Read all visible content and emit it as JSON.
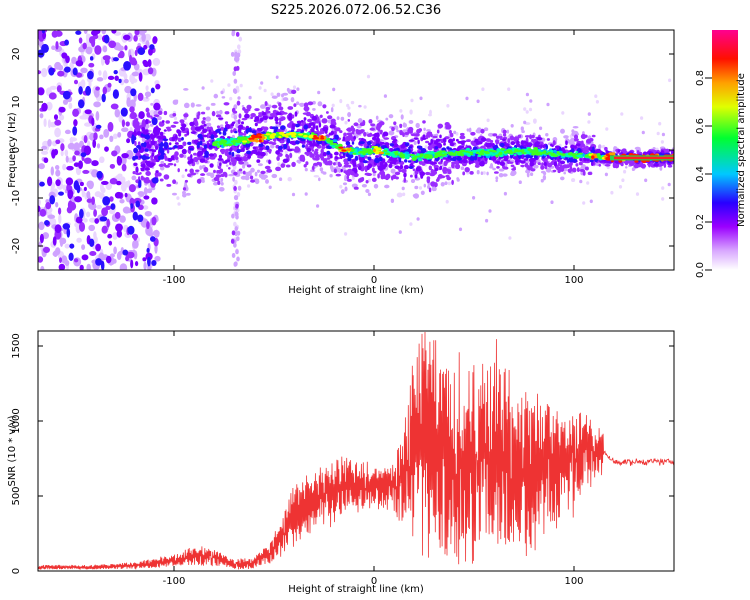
{
  "title": "S225.2026.072.06.52.C36",
  "chart_data": [
    {
      "type": "heatmap",
      "xlabel": "Height of straight line (km)",
      "ylabel": "Frequency (Hz)",
      "xlim": [
        -168,
        150
      ],
      "ylim": [
        -25,
        25
      ],
      "xticks": [
        {
          "v": -100,
          "label": "-100"
        },
        {
          "v": 0,
          "label": "0"
        },
        {
          "v": 100,
          "label": "100"
        }
      ],
      "yticks": [
        {
          "v": 20,
          "label": "20"
        },
        {
          "v": 10,
          "label": "10"
        },
        {
          "v": 0,
          "label": "0"
        },
        {
          "v": -10,
          "label": "-10"
        },
        {
          "v": -20,
          "label": "-20"
        }
      ],
      "ridge": {
        "description": "dominant frequency track (Hz) vs height (km)",
        "x": [
          -110,
          -90,
          -75,
          -65,
          -55,
          -45,
          -35,
          -25,
          -15,
          -5,
          0,
          10,
          20,
          30,
          45,
          60,
          75,
          90,
          100,
          110,
          120,
          130,
          140,
          150
        ],
        "y": [
          0.5,
          1.0,
          1.5,
          2.0,
          2.8,
          3.2,
          3.0,
          2.5,
          0.0,
          -0.5,
          0.0,
          -0.8,
          -1.5,
          -1.0,
          -0.5,
          -0.5,
          -0.3,
          -0.8,
          -1.0,
          -1.3,
          -1.5,
          -1.6,
          -1.7,
          -1.7
        ]
      },
      "colorbar": {
        "label": "Normalized spectral amplitude",
        "range": [
          0.0,
          1.0
        ],
        "ticks": [
          {
            "v": 0.0,
            "label": "0.0"
          },
          {
            "v": 0.2,
            "label": "0.2"
          },
          {
            "v": 0.4,
            "label": "0.4"
          },
          {
            "v": 0.6,
            "label": "0.6"
          },
          {
            "v": 0.8,
            "label": "0.8"
          }
        ],
        "colors": [
          "#ffffff",
          "#a000ff",
          "#0000ff",
          "#00c8ff",
          "#00ff00",
          "#ffff00",
          "#ff8000",
          "#ff0000",
          "#ff0080"
        ]
      }
    },
    {
      "type": "line",
      "xlabel": "Height of straight line (km)",
      "ylabel": "SNR (10 * v/v)",
      "xlim": [
        -168,
        150
      ],
      "ylim": [
        0,
        1600
      ],
      "xticks": [
        {
          "v": -100,
          "label": "-100"
        },
        {
          "v": 0,
          "label": "0"
        },
        {
          "v": 100,
          "label": "100"
        }
      ],
      "yticks": [
        {
          "v": 0,
          "label": "0"
        },
        {
          "v": 500,
          "label": "500"
        },
        {
          "v": 1000,
          "label": "1000"
        },
        {
          "v": 1500,
          "label": "1500"
        }
      ],
      "color": "#ee3333",
      "envelope": {
        "description": "approximate upper / lower envelope of the noisy SNR trace (data units)",
        "x": [
          -168,
          -140,
          -120,
          -100,
          -90,
          -80,
          -70,
          -60,
          -50,
          -40,
          -30,
          -20,
          -10,
          0,
          10,
          15,
          20,
          30,
          40,
          50,
          60,
          70,
          80,
          90,
          100,
          110,
          115,
          120,
          150
        ],
        "hi": [
          40,
          40,
          60,
          110,
          160,
          150,
          80,
          90,
          230,
          560,
          660,
          720,
          760,
          680,
          720,
          1000,
          1500,
          1560,
          1320,
          1440,
          1420,
          1280,
          1170,
          1140,
          1110,
          1000,
          930,
          760,
          760
        ],
        "lo": [
          10,
          10,
          15,
          30,
          40,
          30,
          10,
          20,
          60,
          180,
          280,
          340,
          380,
          420,
          400,
          300,
          250,
          100,
          80,
          60,
          150,
          100,
          120,
          300,
          400,
          620,
          660,
          690,
          700
        ]
      }
    }
  ]
}
